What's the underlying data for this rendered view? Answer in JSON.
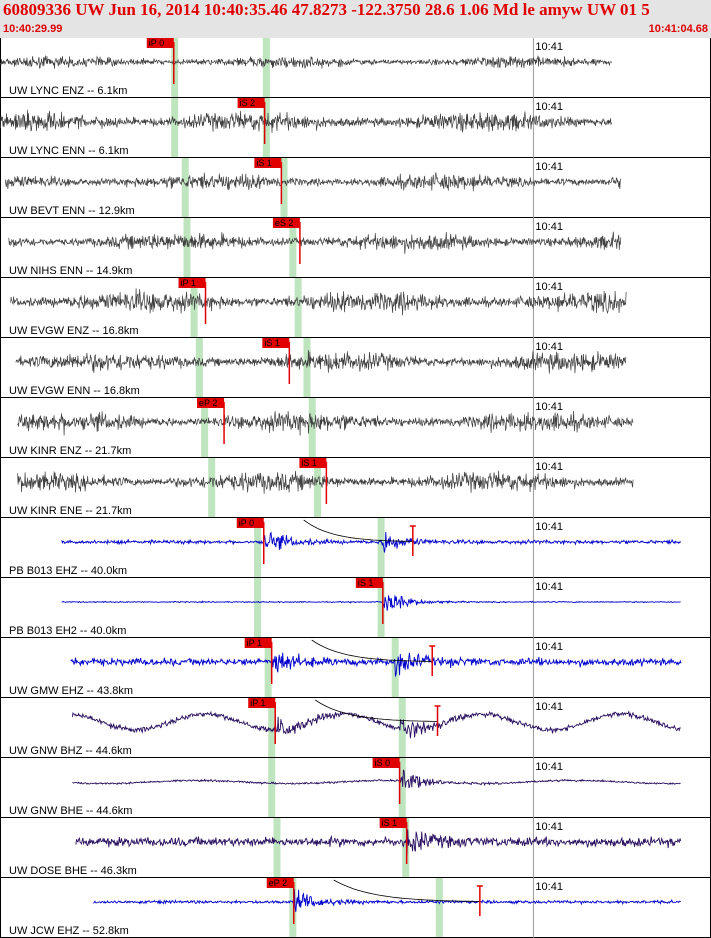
{
  "header": {
    "title": "60809336 UW Jun 16, 2014 10:40:35.46   47.8273 -122.3750 28.6 1.06 Md le amyw UW 01   5",
    "start_time": "10:40:29.99",
    "end_time": "10:41:04.68"
  },
  "colors": {
    "header_bg": "#e4e4e4",
    "header_text": "#e00000",
    "pick_marker": "#e00000",
    "window_band": "#bfe5bf",
    "trace_uw": "#404040",
    "trace_pb": "#0000cc",
    "trace_gnw": "#2a1060"
  },
  "chart_data": {
    "type": "line",
    "x_axis": {
      "unit": "seconds",
      "start": "10:40:29.99",
      "end": "10:41:04.68",
      "duration_s": 34.69
    },
    "tick_label": "10:41",
    "tick_time_s": 30.01,
    "series": [
      {
        "name": "UW LYNC ENZ -- 6.1km",
        "trace": "uw",
        "start_s": 0.0,
        "end_s": 34.69,
        "amp": 0.32,
        "pick": {
          "label": "iP 0",
          "time_s": 9.85
        },
        "windows_s": [
          9.9,
          15.1
        ]
      },
      {
        "name": "UW LYNC ENN -- 6.1km",
        "trace": "uw",
        "start_s": 0.0,
        "end_s": 34.69,
        "amp": 0.55,
        "pick": {
          "label": "iS 2",
          "time_s": 15.0
        },
        "windows_s": [
          9.9,
          15.1
        ]
      },
      {
        "name": "UW BEVT ENN -- 12.9km",
        "trace": "uw",
        "start_s": 0.3,
        "end_s": 35.2,
        "amp": 0.45,
        "pick": {
          "label": "iS 1",
          "time_s": 15.95
        },
        "windows_s": [
          10.5,
          16.1
        ]
      },
      {
        "name": "UW NIHS ENN -- 14.9km",
        "trace": "uw",
        "start_s": 0.5,
        "end_s": 35.2,
        "amp": 0.5,
        "pick": {
          "label": "eS 2",
          "time_s": 17.0
        },
        "windows_s": [
          10.6,
          16.6
        ]
      },
      {
        "name": "UW EVGW ENZ -- 16.8km",
        "trace": "uw",
        "start_s": 0.6,
        "end_s": 35.5,
        "amp": 0.6,
        "pick": {
          "label": "iP 1",
          "time_s": 11.65
        },
        "windows_s": [
          11.0,
          16.9
        ]
      },
      {
        "name": "UW EVGW ENN -- 16.8km",
        "trace": "uw",
        "start_s": 0.9,
        "end_s": 35.5,
        "amp": 0.55,
        "pick": {
          "label": "iS 1",
          "time_s": 16.4
        },
        "windows_s": [
          11.3,
          17.4
        ]
      },
      {
        "name": "UW KINR ENZ -- 21.7km",
        "trace": "uw",
        "start_s": 1.0,
        "end_s": 35.9,
        "amp": 0.55,
        "pick": {
          "label": "eP 2",
          "time_s": 12.7
        },
        "windows_s": [
          11.6,
          17.7
        ]
      },
      {
        "name": "UW KINR ENE -- 21.7km",
        "trace": "uw",
        "start_s": 1.0,
        "end_s": 35.9,
        "amp": 0.55,
        "pick": {
          "label": "iS 1",
          "time_s": 18.5
        },
        "windows_s": [
          12.0,
          18.0
        ]
      },
      {
        "name": "PB B013 EHZ -- 40.0km",
        "trace": "pb",
        "start_s": 3.5,
        "end_s": 38.6,
        "amp": 0.1,
        "pick": {
          "label": "iP 0",
          "time_s": 14.95
        },
        "onsets_s": [
          14.95,
          21.6
        ],
        "coda_marks_s": [
          23.4
        ],
        "windows_s": [
          14.6,
          21.6
        ]
      },
      {
        "name": "PB B013 EH2 -- 40.0km",
        "trace": "pb",
        "start_s": 3.5,
        "end_s": 38.6,
        "amp": 0.03,
        "pick": {
          "label": "iS 1",
          "time_s": 21.7
        },
        "onsets_s": [
          21.7
        ],
        "windows_s": [
          14.6,
          21.6
        ]
      },
      {
        "name": "UW GMW EHZ -- 43.8km",
        "trace": "pb",
        "start_s": 4.0,
        "end_s": 38.6,
        "amp": 0.2,
        "pick": {
          "label": "iP 1",
          "time_s": 15.4
        },
        "onsets_s": [
          15.4,
          22.4
        ],
        "coda_marks_s": [
          24.5
        ],
        "windows_s": [
          15.2,
          22.4
        ]
      },
      {
        "name": "UW GNW BHZ -- 44.6km",
        "trace": "gnw",
        "start_s": 4.1,
        "end_s": 38.6,
        "amp": 0.15,
        "pick": {
          "label": "iP 1",
          "time_s": 15.6
        },
        "onsets_s": [
          15.6,
          22.7
        ],
        "coda_marks_s": [
          24.8
        ],
        "windows_s": [
          15.4,
          22.8
        ]
      },
      {
        "name": "UW GNW BHE -- 44.6km",
        "trace": "gnw",
        "start_s": 4.1,
        "end_s": 38.6,
        "amp": 0.05,
        "pick": {
          "label": "iS 0",
          "time_s": 22.65
        },
        "onsets_s": [
          22.65
        ],
        "windows_s": [
          15.4,
          22.8
        ]
      },
      {
        "name": "UW DOSE BHE -- 46.3km",
        "trace": "gnw",
        "start_s": 4.3,
        "end_s": 38.6,
        "amp": 0.25,
        "pick": {
          "label": "iS 1",
          "time_s": 23.05
        },
        "onsets_s": [
          23.05
        ],
        "windows_s": [
          15.7,
          23.0
        ]
      },
      {
        "name": "UW JCW EHZ -- 52.8km",
        "trace": "pb",
        "start_s": 5.3,
        "end_s": 38.6,
        "amp": 0.08,
        "pick": {
          "label": "eP 2",
          "time_s": 16.65
        },
        "onsets_s": [
          16.65
        ],
        "coda_marks_s": [
          27.2
        ],
        "windows_s": [
          16.6,
          24.9
        ]
      }
    ]
  }
}
